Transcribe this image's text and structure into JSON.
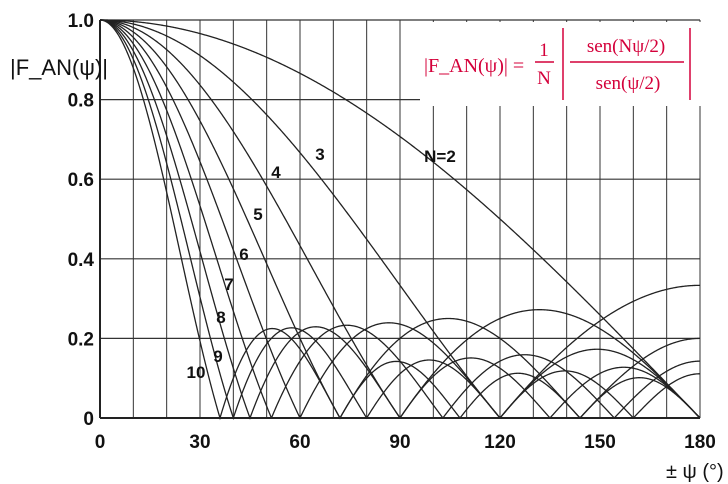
{
  "chart_data": {
    "type": "line",
    "title": "",
    "ylabel": "|F_AN(ψ)|",
    "xlabel": "± ψ (°)",
    "xlim": [
      0,
      180
    ],
    "ylim": [
      0,
      1.0
    ],
    "x_ticks": [
      "0",
      "30",
      "60",
      "90",
      "120",
      "150",
      "180"
    ],
    "y_ticks": [
      "0",
      "0.2",
      "0.4",
      "0.6",
      "0.8",
      "1.0"
    ],
    "x_grid_step_deg": 10,
    "grid": true,
    "formula": {
      "lhs": "|F_AN(ψ)| =",
      "frac_num": "1",
      "frac_den": "N",
      "abs_num": "sen(Nψ/2)",
      "abs_den": "sen(ψ/2)"
    },
    "series": [
      {
        "N": 2,
        "label": "N=2"
      },
      {
        "N": 3,
        "label": "3"
      },
      {
        "N": 4,
        "label": "4"
      },
      {
        "N": 5,
        "label": "5"
      },
      {
        "N": 6,
        "label": "6"
      },
      {
        "N": 7,
        "label": "7"
      },
      {
        "N": 8,
        "label": "8"
      },
      {
        "N": 9,
        "label": "9"
      },
      {
        "N": 10,
        "label": "10"
      }
    ],
    "colors": {
      "curve": "#222222",
      "grid": "#333333",
      "formula": "#d4003a"
    }
  }
}
